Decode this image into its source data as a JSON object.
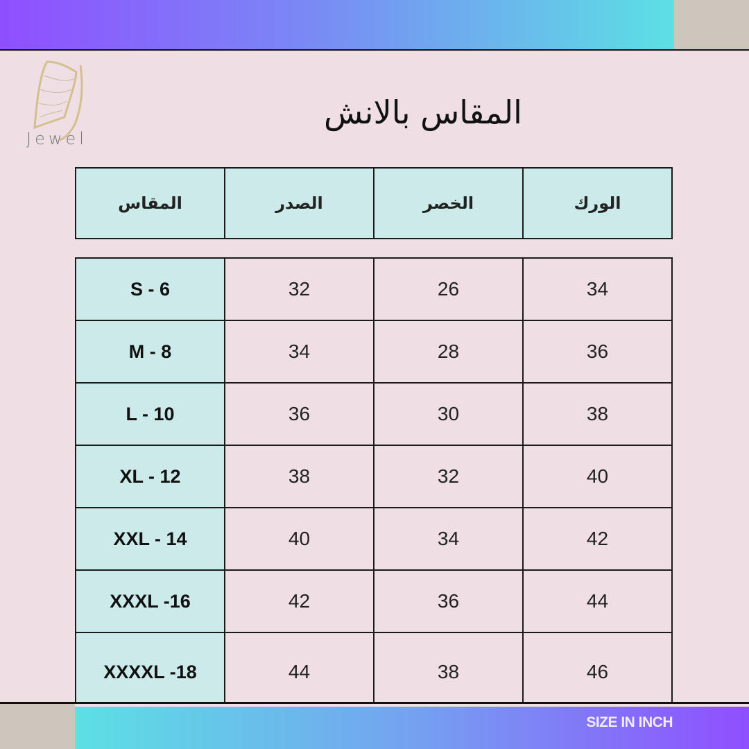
{
  "brand": {
    "name": "Jewel",
    "logo_icon": "butterfly-icon"
  },
  "title": "المقاس بالانش",
  "colors": {
    "background": "#efdfe4",
    "header_cell": "#cdeaea",
    "gradient_start": "#8f4fff",
    "gradient_end": "#5ce0e4",
    "beige": "#cdc6bc"
  },
  "table": {
    "headers": [
      "المقاس",
      "الصدر",
      "الخصر",
      "الورك"
    ],
    "rows": [
      [
        "S - 6",
        "32",
        "26",
        "34"
      ],
      [
        "M - 8",
        "34",
        "28",
        "36"
      ],
      [
        "L - 10",
        "36",
        "30",
        "38"
      ],
      [
        "XL - 12",
        "38",
        "32",
        "40"
      ],
      [
        "XXL - 14",
        "40",
        "34",
        "42"
      ],
      [
        "XXXL -16",
        "42",
        "36",
        "44"
      ],
      [
        "XXXXL -18",
        "44",
        "38",
        "46"
      ]
    ]
  },
  "footer": {
    "label": "SIZE IN INCH"
  }
}
